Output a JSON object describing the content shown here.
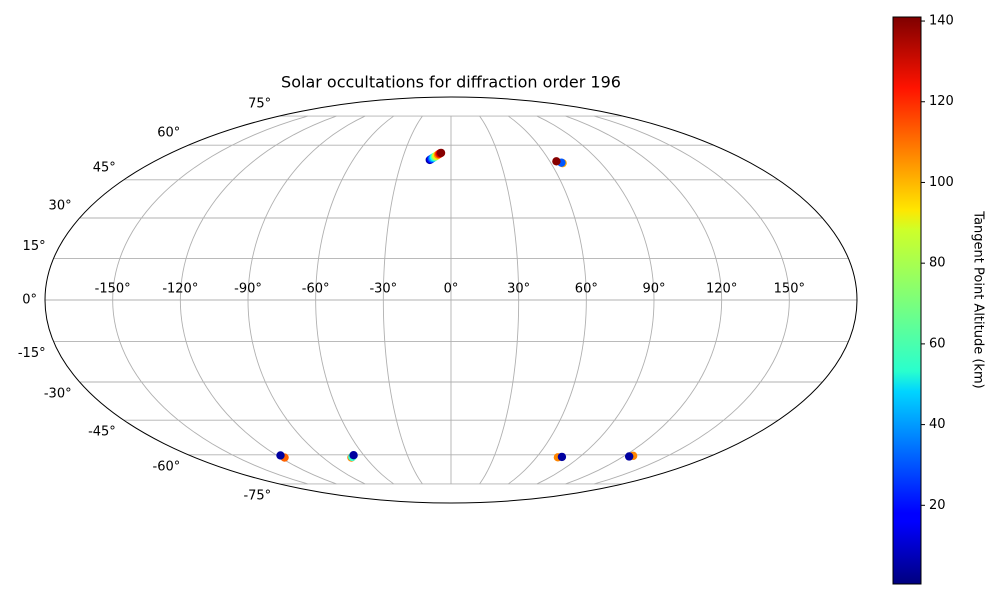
{
  "chart_data": {
    "type": "scatter",
    "projection": "mollweide",
    "title": "Solar occultations for diffraction order 196",
    "xlim": [
      -180,
      180
    ],
    "ylim": [
      -90,
      90
    ],
    "xticks": [
      {
        "value": -150,
        "label": "-150°"
      },
      {
        "value": -120,
        "label": "-120°"
      },
      {
        "value": -90,
        "label": "-90°"
      },
      {
        "value": -60,
        "label": "-60°"
      },
      {
        "value": -30,
        "label": "-30°"
      },
      {
        "value": 0,
        "label": "0°"
      },
      {
        "value": 30,
        "label": "30°"
      },
      {
        "value": 60,
        "label": "60°"
      },
      {
        "value": 90,
        "label": "90°"
      },
      {
        "value": 120,
        "label": "120°"
      },
      {
        "value": 150,
        "label": "150°"
      }
    ],
    "yticks": [
      {
        "value": -75,
        "label": "-75°"
      },
      {
        "value": -60,
        "label": "-60°"
      },
      {
        "value": -45,
        "label": "-45°"
      },
      {
        "value": -30,
        "label": "-30°"
      },
      {
        "value": -15,
        "label": "-15°"
      },
      {
        "value": 0,
        "label": "0°"
      },
      {
        "value": 15,
        "label": "15°"
      },
      {
        "value": 30,
        "label": "30°"
      },
      {
        "value": 45,
        "label": "45°"
      },
      {
        "value": 60,
        "label": "60°"
      },
      {
        "value": 75,
        "label": "75°"
      }
    ],
    "grid": true,
    "colormap": "jet",
    "x": [
      -13,
      -12.4,
      -11.8,
      -11.2,
      -10.6,
      -10,
      -9.4,
      -8.8,
      -8.2,
      -7.6,
      -7,
      -6.4,
      67,
      66.5,
      64,
      -117,
      -117.5,
      -70,
      -69,
      -67,
      75,
      77.5,
      126,
      124
    ],
    "y": [
      53.4,
      53.7,
      54,
      54.3,
      54.6,
      54.8,
      55.1,
      55.4,
      55.7,
      56,
      56.3,
      56.5,
      52,
      52.2,
      52.8,
      -61.3,
      -60.3,
      -61.3,
      -61,
      -60.2,
      -61.2,
      -61,
      -60.5,
      -60.8
    ],
    "c": [
      5,
      18,
      30,
      42,
      55,
      68,
      80,
      92,
      104,
      116,
      128,
      140,
      100,
      30,
      140,
      110,
      5,
      105,
      60,
      5,
      105,
      5,
      105,
      5
    ],
    "colorbar": {
      "label": "Tangent Point Altitude (km)",
      "clim": [
        0.5,
        141
      ],
      "ticks": [
        20,
        40,
        60,
        80,
        100,
        120,
        140
      ]
    }
  }
}
